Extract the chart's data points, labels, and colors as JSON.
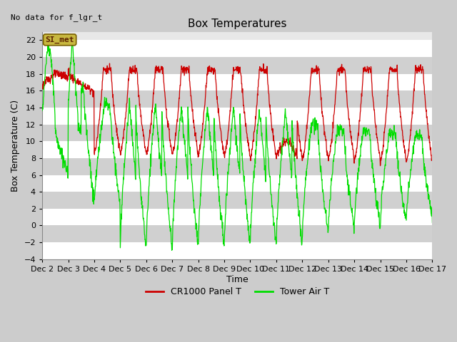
{
  "title": "Box Temperatures",
  "xlabel": "Time",
  "ylabel": "Box Temperature (C)",
  "ylim": [
    -4,
    23
  ],
  "yticks": [
    -4,
    -2,
    0,
    2,
    4,
    6,
    8,
    10,
    12,
    14,
    16,
    18,
    20,
    22
  ],
  "no_data_text": "No data for f_lgr_t",
  "si_met_label": "SI_met",
  "legend_entries": [
    "CR1000 Panel T",
    "Tower Air T"
  ],
  "legend_colors": [
    "#cc0000",
    "#00dd00"
  ],
  "background_color": "#cccccc",
  "plot_bg_color_light": "#e8e8e8",
  "plot_bg_color_dark": "#d0d0d0",
  "grid_color": "#ffffff",
  "title_fontsize": 11,
  "label_fontsize": 9,
  "tick_fontsize": 8,
  "figwidth": 6.4,
  "figheight": 4.8,
  "dpi": 100
}
